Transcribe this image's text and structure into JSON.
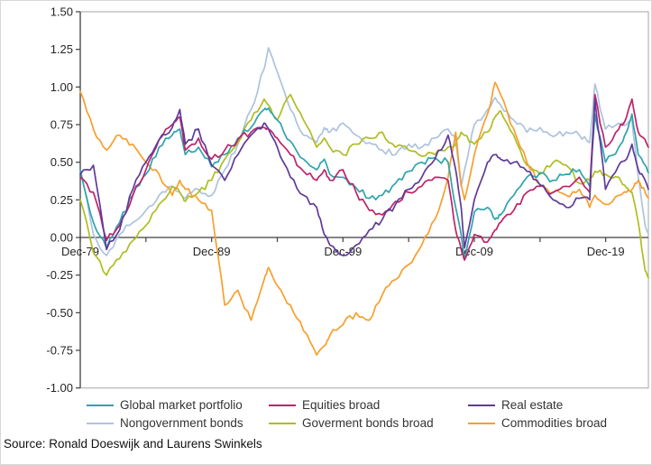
{
  "source_note": "Source: Ronald Doeswijk and Laurens Swinkels",
  "style": {
    "axis_color": "#3f3f3f",
    "frame_color": "#a6a6a6",
    "tick_label_color": "#262626",
    "background": "#ffffff"
  },
  "chart_data": {
    "type": "line",
    "title": "",
    "xlabel": "",
    "ylabel": "",
    "grid": false,
    "legend_position": "bottom",
    "legend_rows": 2,
    "legend_columns": 3,
    "y_axis": {
      "min": -1.0,
      "max": 1.5,
      "step": 0.25,
      "tick_format_decimals": 2
    },
    "x_axis": {
      "tick_labels": [
        "Dec-79",
        "Dec-89",
        "Dec-99",
        "Dec-09",
        "Dec-19"
      ],
      "label_years": [
        1979.92,
        1989.92,
        1999.92,
        2009.92,
        2019.92
      ],
      "minor_tick_interval_years": 5,
      "range_years": [
        1979.92,
        2023.17
      ]
    },
    "x": [
      1979.92,
      1980.92,
      1981.92,
      1982.92,
      1983.92,
      1984.92,
      1985.92,
      1986.92,
      1987.5,
      1987.92,
      1988.92,
      1989.92,
      1990.92,
      1991.92,
      1992.92,
      1993.92,
      1994.25,
      1994.92,
      1995.92,
      1996.92,
      1997.92,
      1998.5,
      1998.92,
      1999.92,
      2000.92,
      2001.92,
      2002.92,
      2003.92,
      2004.92,
      2005.92,
      2006.92,
      2007.92,
      2008.5,
      2008.92,
      2009.17,
      2009.92,
      2010.92,
      2011.5,
      2011.92,
      2012.92,
      2013.92,
      2014.92,
      2015.92,
      2016.92,
      2017.92,
      2018.7,
      2019.1,
      2019.9,
      2020.92,
      2021.5,
      2021.92,
      2022.4,
      2022.92,
      2023.17
    ],
    "series": [
      {
        "name": "Global market portfolio",
        "color": "#2FA3AD",
        "values": [
          0.45,
          0.1,
          -0.07,
          0.1,
          0.28,
          0.42,
          0.6,
          0.68,
          0.72,
          0.55,
          0.6,
          0.47,
          0.55,
          0.66,
          0.73,
          0.85,
          0.86,
          0.78,
          0.64,
          0.52,
          0.45,
          0.52,
          0.42,
          0.4,
          0.33,
          0.26,
          0.28,
          0.36,
          0.44,
          0.5,
          0.53,
          0.5,
          0.2,
          0.02,
          -0.15,
          0.17,
          0.2,
          0.12,
          0.15,
          0.28,
          0.4,
          0.43,
          0.38,
          0.42,
          0.45,
          0.34,
          0.82,
          0.5,
          0.6,
          0.7,
          0.82,
          0.55,
          0.48,
          0.43
        ]
      },
      {
        "name": "Equities broad",
        "color": "#BE2369",
        "values": [
          0.4,
          0.3,
          -0.02,
          0.08,
          0.28,
          0.45,
          0.65,
          0.75,
          0.8,
          0.58,
          0.66,
          0.52,
          0.58,
          0.65,
          0.7,
          0.73,
          0.72,
          0.66,
          0.55,
          0.44,
          0.38,
          0.45,
          0.38,
          0.45,
          0.3,
          0.18,
          0.15,
          0.24,
          0.3,
          0.34,
          0.4,
          0.38,
          0.05,
          -0.08,
          -0.15,
          0.02,
          -0.03,
          0.05,
          0.1,
          0.18,
          0.3,
          0.34,
          0.3,
          0.34,
          0.4,
          0.3,
          0.95,
          0.6,
          0.72,
          0.8,
          0.92,
          0.7,
          0.65,
          0.6
        ]
      },
      {
        "name": "Real estate",
        "color": "#5F3A99",
        "values": [
          0.42,
          0.48,
          -0.08,
          0.05,
          0.32,
          0.5,
          0.65,
          0.73,
          0.85,
          0.62,
          0.72,
          0.48,
          0.38,
          0.55,
          0.68,
          0.76,
          0.72,
          0.6,
          0.4,
          0.28,
          0.2,
          0.02,
          -0.05,
          -0.12,
          -0.05,
          0.05,
          0.12,
          0.22,
          0.32,
          0.4,
          0.52,
          0.68,
          0.45,
          0.2,
          -0.07,
          0.25,
          0.5,
          0.55,
          0.52,
          0.5,
          0.44,
          0.35,
          0.25,
          0.2,
          0.26,
          0.25,
          0.92,
          0.32,
          0.48,
          0.52,
          0.62,
          0.45,
          0.38,
          0.32
        ]
      },
      {
        "name": "Nongovernment bonds",
        "color": "#ADC3DD",
        "values": [
          0.45,
          0.02,
          -0.12,
          0.02,
          0.1,
          0.18,
          0.28,
          0.34,
          0.3,
          0.26,
          0.32,
          0.28,
          0.45,
          0.62,
          0.85,
          1.12,
          1.26,
          1.1,
          0.85,
          0.68,
          0.63,
          0.73,
          0.7,
          0.76,
          0.68,
          0.63,
          0.58,
          0.55,
          0.62,
          0.6,
          0.66,
          0.72,
          0.65,
          0.34,
          0.45,
          0.75,
          0.85,
          0.93,
          0.88,
          0.78,
          0.7,
          0.73,
          0.67,
          0.7,
          0.68,
          0.63,
          1.02,
          0.72,
          0.76,
          0.75,
          0.78,
          0.4,
          0.08,
          0.02
        ]
      },
      {
        "name": "Goverment bonds broad",
        "color": "#AFBD21",
        "values": [
          0.25,
          -0.1,
          -0.25,
          -0.14,
          -0.02,
          0.08,
          0.22,
          0.34,
          0.3,
          0.24,
          0.3,
          0.38,
          0.52,
          0.63,
          0.78,
          0.92,
          0.88,
          0.78,
          0.95,
          0.78,
          0.6,
          0.66,
          0.6,
          0.55,
          0.62,
          0.66,
          0.7,
          0.6,
          0.58,
          0.54,
          0.55,
          0.6,
          0.62,
          0.7,
          0.68,
          0.62,
          0.7,
          0.8,
          0.84,
          0.68,
          0.48,
          0.42,
          0.5,
          0.48,
          0.36,
          0.38,
          0.44,
          0.42,
          0.4,
          0.33,
          0.3,
          0.1,
          -0.22,
          -0.27
        ]
      },
      {
        "name": "Commodities broad",
        "color": "#F79F2D",
        "values": [
          0.97,
          0.72,
          0.58,
          0.68,
          0.62,
          0.5,
          0.42,
          0.28,
          0.38,
          0.32,
          0.25,
          0.18,
          -0.45,
          -0.35,
          -0.55,
          -0.28,
          -0.2,
          -0.32,
          -0.45,
          -0.62,
          -0.78,
          -0.72,
          -0.65,
          -0.58,
          -0.5,
          -0.55,
          -0.38,
          -0.28,
          -0.18,
          -0.05,
          0.12,
          0.4,
          0.7,
          0.35,
          0.25,
          0.55,
          0.82,
          1.03,
          0.95,
          0.72,
          0.5,
          0.35,
          0.3,
          0.28,
          0.32,
          0.2,
          0.28,
          0.22,
          0.28,
          0.3,
          0.32,
          0.38,
          0.3,
          0.26
        ]
      }
    ]
  }
}
